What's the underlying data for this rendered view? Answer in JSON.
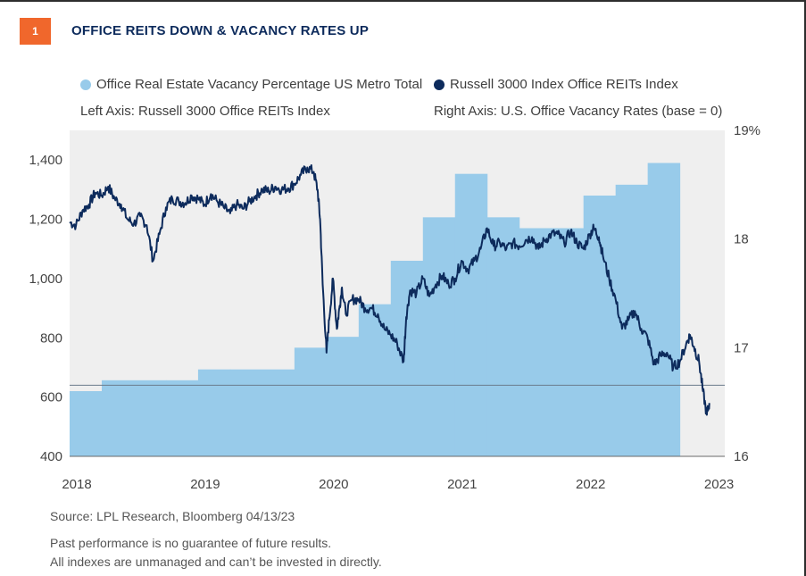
{
  "header": {
    "badge": "1",
    "title": "OFFICE REITS DOWN & VACANCY RATES UP"
  },
  "legend": {
    "vacancy_label": "Office Real Estate Vacancy Percentage US Metro Total",
    "reits_label": "Russell 3000 Index Office REITs Index",
    "left_axis_note": "Left Axis: Russell 3000 Office REITs Index",
    "right_axis_note": "Right Axis: U.S. Office Vacancy Rates (base = 0)"
  },
  "colors": {
    "vacancy": "#98cbea",
    "reits": "#0d2b5c",
    "plot_bg": "#efefef",
    "badge": "#f0672c"
  },
  "chart_data": {
    "type": "bar+line",
    "x_range": [
      2018.0,
      2023.1
    ],
    "x_ticks": [
      "2018",
      "2019",
      "2020",
      "2021",
      "2022",
      "2023"
    ],
    "left_axis": {
      "label": "Russell 3000 Office REITs Index",
      "ylim": [
        400,
        1500
      ],
      "ticks": [
        "400",
        "600",
        "800",
        "1,000",
        "1,200",
        "1,400"
      ]
    },
    "right_axis": {
      "label": "U.S. Office Vacancy Rates (base = 0)",
      "ylim": [
        16,
        19
      ],
      "ticks": [
        "16",
        "17",
        "18",
        "19%"
      ]
    },
    "reference_line_left": 640,
    "vacancy_series": {
      "name": "Office Real Estate Vacancy Percentage US Metro Total",
      "steps": [
        {
          "start": 2018.0,
          "end": 2018.25,
          "value": 16.6
        },
        {
          "start": 2018.25,
          "end": 2018.75,
          "value": 16.7
        },
        {
          "start": 2018.75,
          "end": 2019.0,
          "value": 16.7
        },
        {
          "start": 2019.0,
          "end": 2019.25,
          "value": 16.8
        },
        {
          "start": 2019.25,
          "end": 2019.75,
          "value": 16.8
        },
        {
          "start": 2019.75,
          "end": 2020.0,
          "value": 17.0
        },
        {
          "start": 2020.0,
          "end": 2020.25,
          "value": 17.1
        },
        {
          "start": 2020.25,
          "end": 2020.5,
          "value": 17.4
        },
        {
          "start": 2020.5,
          "end": 2020.75,
          "value": 17.8
        },
        {
          "start": 2020.75,
          "end": 2021.0,
          "value": 18.2
        },
        {
          "start": 2021.0,
          "end": 2021.25,
          "value": 18.6
        },
        {
          "start": 2021.25,
          "end": 2021.5,
          "value": 18.2
        },
        {
          "start": 2021.5,
          "end": 2021.75,
          "value": 18.1
        },
        {
          "start": 2021.75,
          "end": 2022.0,
          "value": 18.1
        },
        {
          "start": 2022.0,
          "end": 2022.25,
          "value": 18.4
        },
        {
          "start": 2022.25,
          "end": 2022.5,
          "value": 18.5
        },
        {
          "start": 2022.5,
          "end": 2022.75,
          "value": 18.7
        }
      ]
    },
    "reits_series": {
      "name": "Russell 3000 Index Office REITs Index",
      "x": [
        2018.0,
        2018.05,
        2018.1,
        2018.15,
        2018.2,
        2018.25,
        2018.3,
        2018.35,
        2018.4,
        2018.45,
        2018.5,
        2018.55,
        2018.6,
        2018.65,
        2018.7,
        2018.75,
        2018.8,
        2018.85,
        2018.9,
        2018.95,
        2019.0,
        2019.05,
        2019.1,
        2019.15,
        2019.2,
        2019.25,
        2019.3,
        2019.35,
        2019.4,
        2019.45,
        2019.5,
        2019.55,
        2019.6,
        2019.65,
        2019.7,
        2019.75,
        2019.8,
        2019.85,
        2019.9,
        2019.93,
        2019.95,
        2019.97,
        2020.0,
        2020.02,
        2020.05,
        2020.08,
        2020.1,
        2020.12,
        2020.15,
        2020.2,
        2020.25,
        2020.3,
        2020.35,
        2020.4,
        2020.45,
        2020.5,
        2020.55,
        2020.6,
        2020.62,
        2020.65,
        2020.7,
        2020.75,
        2020.8,
        2020.85,
        2020.9,
        2020.95,
        2021.0,
        2021.05,
        2021.1,
        2021.15,
        2021.2,
        2021.25,
        2021.3,
        2021.35,
        2021.4,
        2021.45,
        2021.5,
        2021.55,
        2021.6,
        2021.65,
        2021.7,
        2021.75,
        2021.8,
        2021.85,
        2021.9,
        2021.95,
        2022.0,
        2022.05,
        2022.08,
        2022.12,
        2022.15,
        2022.2,
        2022.25,
        2022.3,
        2022.35,
        2022.4,
        2022.45,
        2022.5,
        2022.55,
        2022.6,
        2022.65,
        2022.7,
        2022.75,
        2022.8,
        2022.83,
        2022.86,
        2022.9,
        2022.93,
        2022.96,
        2022.98
      ],
      "values": [
        1190,
        1180,
        1230,
        1250,
        1290,
        1280,
        1310,
        1270,
        1250,
        1200,
        1185,
        1210,
        1180,
        1060,
        1150,
        1240,
        1270,
        1260,
        1255,
        1280,
        1270,
        1250,
        1285,
        1260,
        1240,
        1220,
        1250,
        1235,
        1260,
        1280,
        1300,
        1295,
        1310,
        1300,
        1305,
        1320,
        1350,
        1375,
        1360,
        1300,
        1200,
        980,
        750,
        860,
        1000,
        830,
        900,
        970,
        880,
        930,
        930,
        900,
        900,
        880,
        830,
        810,
        780,
        720,
        870,
        960,
        950,
        1000,
        940,
        980,
        1010,
        980,
        1000,
        1060,
        1030,
        1060,
        1100,
        1170,
        1110,
        1120,
        1100,
        1120,
        1110,
        1130,
        1140,
        1100,
        1130,
        1150,
        1150,
        1120,
        1160,
        1120,
        1100,
        1150,
        1170,
        1140,
        1080,
        1000,
        930,
        830,
        860,
        890,
        830,
        800,
        710,
        740,
        750,
        700,
        720,
        780,
        810,
        770,
        720,
        620,
        540,
        580
      ]
    }
  },
  "footer": {
    "source": "Source: LPL Research, Bloomberg  04/13/23",
    "disclaimer_1": "Past performance is no guarantee of future results.",
    "disclaimer_2": "All indexes are unmanaged and can’t be invested in directly."
  }
}
